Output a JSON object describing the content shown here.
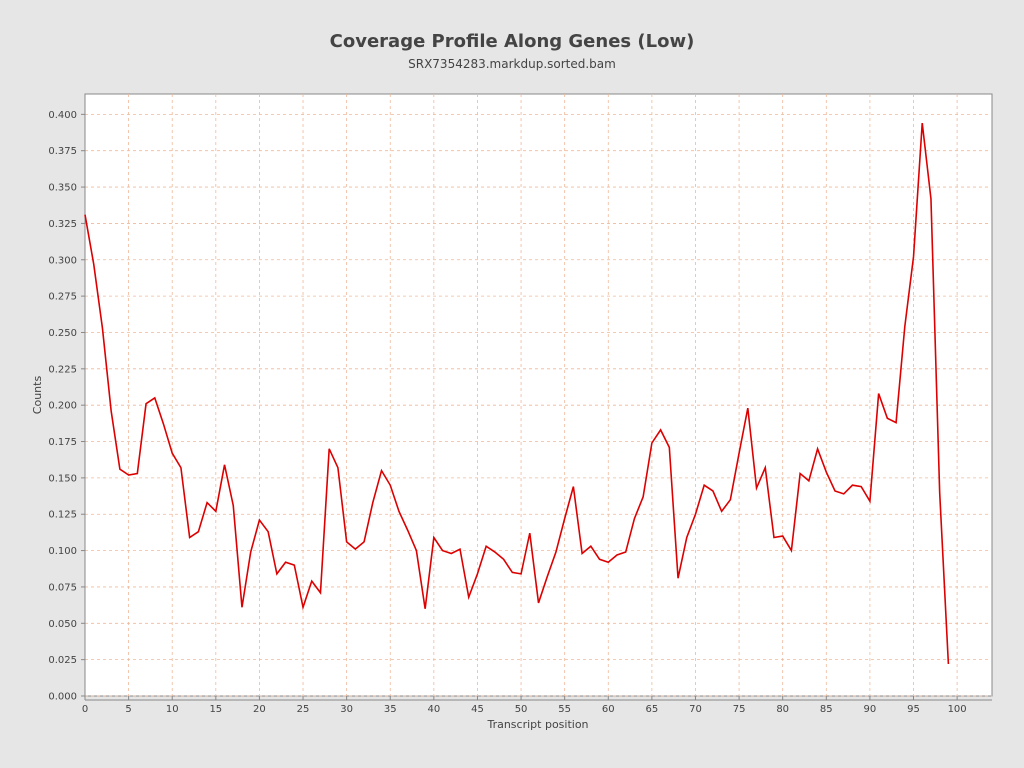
{
  "chart_data": {
    "type": "line",
    "title": "Coverage Profile Along Genes (Low)",
    "subtitle": "SRX7354283.markdup.sorted.bam",
    "xlabel": "Transcript position",
    "ylabel": "Counts",
    "xlim": [
      0,
      104
    ],
    "ylim": [
      0,
      0.414
    ],
    "x_ticks": [
      "0",
      "5",
      "10",
      "15",
      "20",
      "25",
      "30",
      "35",
      "40",
      "45",
      "50",
      "55",
      "60",
      "65",
      "70",
      "75",
      "80",
      "85",
      "90",
      "95",
      "100"
    ],
    "y_ticks": [
      "0.000",
      "0.025",
      "0.050",
      "0.075",
      "0.100",
      "0.125",
      "0.150",
      "0.175",
      "0.200",
      "0.225",
      "0.250",
      "0.275",
      "0.300",
      "0.325",
      "0.350",
      "0.375",
      "0.400"
    ],
    "grid": true,
    "colors": {
      "line": "#dd0000",
      "grid": "#f0b898",
      "plot_background": "#ffffff",
      "page_background": "#e6e6e6"
    },
    "series": [
      {
        "x": [
          0,
          1,
          2,
          3,
          4,
          5,
          6,
          7,
          8,
          9,
          10,
          11,
          12,
          13,
          14,
          15,
          16,
          17,
          18,
          19,
          20,
          21,
          22,
          23,
          24,
          25,
          26,
          27,
          28,
          29,
          30,
          31,
          32,
          33,
          34,
          35,
          36,
          37,
          38,
          39,
          40,
          41,
          42,
          43,
          44,
          45,
          46,
          47,
          48,
          49,
          50,
          51,
          52,
          53,
          54,
          55,
          56,
          57,
          58,
          59,
          60,
          61,
          62,
          63,
          64,
          65,
          66,
          67,
          68,
          69,
          70,
          71,
          72,
          73,
          74,
          75,
          76,
          77,
          78,
          79,
          80,
          81,
          82,
          83,
          84,
          85,
          86,
          87,
          88,
          89,
          90,
          91,
          92,
          93,
          94,
          95,
          96,
          97,
          98,
          99
        ],
        "values": [
          0.331,
          0.297,
          0.253,
          0.196,
          0.156,
          0.152,
          0.153,
          0.201,
          0.205,
          0.187,
          0.167,
          0.157,
          0.109,
          0.113,
          0.133,
          0.127,
          0.159,
          0.131,
          0.061,
          0.099,
          0.121,
          0.113,
          0.084,
          0.092,
          0.09,
          0.061,
          0.079,
          0.071,
          0.17,
          0.157,
          0.106,
          0.101,
          0.106,
          0.133,
          0.155,
          0.145,
          0.127,
          0.114,
          0.1,
          0.06,
          0.109,
          0.1,
          0.098,
          0.101,
          0.068,
          0.084,
          0.103,
          0.099,
          0.094,
          0.085,
          0.084,
          0.112,
          0.064,
          0.082,
          0.099,
          0.122,
          0.144,
          0.098,
          0.103,
          0.094,
          0.092,
          0.097,
          0.099,
          0.122,
          0.137,
          0.174,
          0.183,
          0.171,
          0.081,
          0.109,
          0.125,
          0.145,
          0.141,
          0.127,
          0.135,
          0.167,
          0.198,
          0.143,
          0.157,
          0.109,
          0.11,
          0.1,
          0.153,
          0.148,
          0.17,
          0.154,
          0.141,
          0.139,
          0.145,
          0.144,
          0.134,
          0.208,
          0.191,
          0.188,
          0.254,
          0.302,
          0.394,
          0.342,
          0.14,
          0.022
        ]
      }
    ]
  }
}
